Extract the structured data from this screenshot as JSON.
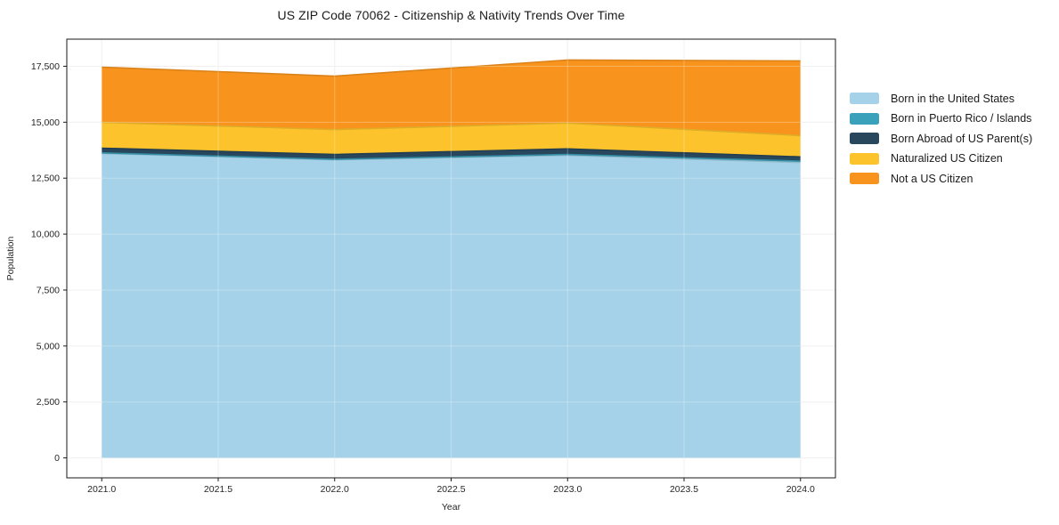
{
  "chart_data": {
    "type": "area",
    "stacked": true,
    "title": "US ZIP Code 70062 - Citizenship & Nativity Trends Over Time",
    "xlabel": "Year",
    "ylabel": "Population",
    "x": [
      2021,
      2022,
      2023,
      2024
    ],
    "series": [
      {
        "name": "Born in the United States",
        "color": "#a5d2e8",
        "values": [
          13600,
          13320,
          13520,
          13200
        ]
      },
      {
        "name": "Born in Puerto Rico / Islands",
        "color": "#3aa1bb",
        "values": [
          30,
          20,
          40,
          60
        ]
      },
      {
        "name": "Born Abroad of US Parent(s)",
        "color": "#28465c",
        "values": [
          210,
          220,
          250,
          190
        ]
      },
      {
        "name": "Naturalized US Citizen",
        "color": "#fdc32d",
        "values": [
          1150,
          1110,
          1150,
          950
        ]
      },
      {
        "name": "Not a US Citizen",
        "color": "#f8941d",
        "values": [
          2470,
          2390,
          2820,
          3340
        ]
      }
    ],
    "xlim": [
      2020.85,
      2024.15
    ],
    "ylim": [
      -891,
      18711
    ],
    "xticks": [
      2021.0,
      2021.5,
      2022.0,
      2022.5,
      2023.0,
      2023.5,
      2024.0
    ],
    "xtick_labels": [
      "2021.0",
      "2021.5",
      "2022.0",
      "2022.5",
      "2023.0",
      "2023.5",
      "2024.0"
    ],
    "yticks": [
      0,
      2500,
      5000,
      7500,
      10000,
      12500,
      15000,
      17500
    ],
    "ytick_labels": [
      "0",
      "2,500",
      "5,000",
      "7,500",
      "10,000",
      "12,500",
      "15,000",
      "17,500"
    ],
    "grid": true,
    "legend_position": "right",
    "colors": {
      "grid": "#ebebeb",
      "grid_overlay": "rgba(255,255,255,0.28)",
      "spine": "#1a1a1a",
      "tick_label": "#262626",
      "axis_label": "#262626"
    }
  }
}
